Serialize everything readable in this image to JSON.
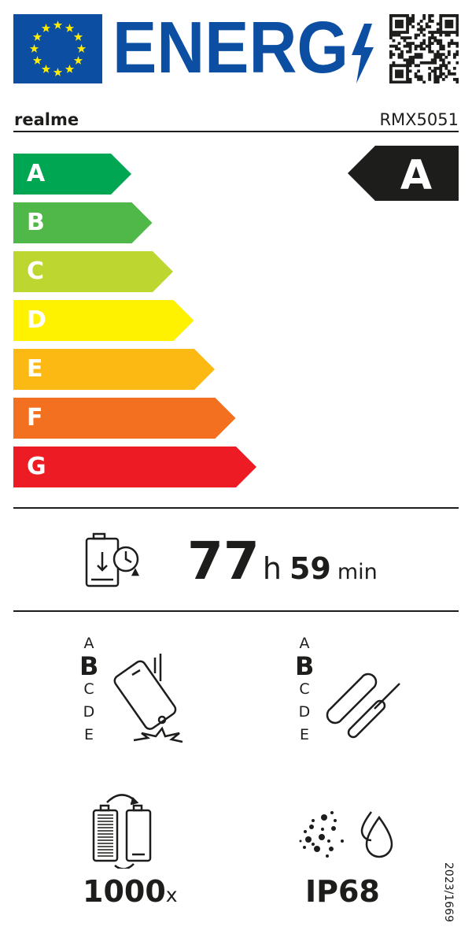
{
  "header": {
    "logo_text": "ENERG",
    "brand_colors": {
      "eu_blue": "#0b4ea2",
      "stars": "#ffed00"
    }
  },
  "supplier": "realme",
  "model": "RMX5051",
  "energy_class": {
    "classes": [
      {
        "letter": "A",
        "color": "#00a651"
      },
      {
        "letter": "B",
        "color": "#50b848"
      },
      {
        "letter": "C",
        "color": "#bed630"
      },
      {
        "letter": "D",
        "color": "#fff200"
      },
      {
        "letter": "E",
        "color": "#fdb913"
      },
      {
        "letter": "F",
        "color": "#f37021"
      },
      {
        "letter": "G",
        "color": "#ed1c24"
      }
    ],
    "rating": "A"
  },
  "battery_endurance": {
    "icon": "battery-clock-icon",
    "hours": "77",
    "hours_unit": "h",
    "minutes": "59",
    "minutes_unit": "min"
  },
  "drop_resistance": {
    "icon": "phone-drop-icon",
    "scale": [
      "A",
      "B",
      "C",
      "D",
      "E"
    ],
    "rating": "B"
  },
  "repairability": {
    "icon": "wrench-screwdriver-icon",
    "scale": [
      "A",
      "B",
      "C",
      "D",
      "E"
    ],
    "rating": "B"
  },
  "battery_cycles": {
    "icon": "battery-cycle-icon",
    "value": "1000",
    "unit": "x"
  },
  "ingress_protection": {
    "icon": "dust-water-icon",
    "value": "IP68"
  },
  "regulation": "2023/1669"
}
